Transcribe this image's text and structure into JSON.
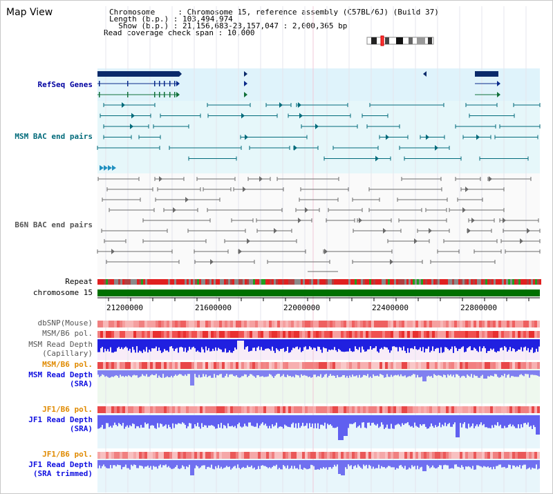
{
  "window": {
    "title": "Map View"
  },
  "info": {
    "line1": "Chromosome     : Chromosome 15, reference assembly (C57BL/6J) (Build 37)",
    "line2": "Length (b.p.) : 103,494,974",
    "line3": "  Show (b.p.) : 21,156,683-23,157,047 : 2,000,365 bp",
    "line4": "Read coverage check span : 10,000"
  },
  "tracks": {
    "refseq": "RefSeq Genes",
    "msm_bac": "MSM BAC end pairs",
    "b6n_bac": "B6N BAC end pairs",
    "repeat": "Repeat",
    "chromosome": "chromosome 15",
    "dbsnp": "dbSNP(Mouse)",
    "msm_b6_pol_1": "MSM/B6 pol.",
    "msm_depth_cap_1": "MSM Read Depth",
    "msm_depth_cap_2": "(Capillary)",
    "msm_b6_pol_2": "MSM/B6 pol.",
    "msm_depth_sra_1": "MSM Read Depth",
    "msm_depth_sra_2": "(SRA)",
    "jf1_b6_pol_1": "JF1/B6 pol.",
    "jf1_depth_sra_1": "JF1 Read Depth",
    "jf1_depth_sra_2": "(SRA)",
    "jf1_b6_pol_2": "JF1/B6 pol.",
    "jf1_trim_1": "JF1 Read Depth",
    "jf1_trim_2": "(SRA trimmed)"
  },
  "axis": {
    "ticks": [
      "21200000",
      "21600000",
      "22000000",
      "22400000",
      "22800000"
    ]
  },
  "colors": {
    "navy": "#000080",
    "teal": "#006a7a",
    "gray": "#555555",
    "orange": "#e08a00",
    "blue": "#1010e0",
    "green": "#007000"
  }
}
